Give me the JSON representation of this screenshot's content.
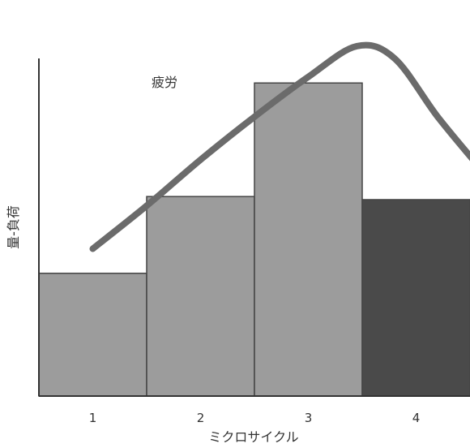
{
  "chart_data": {
    "type": "bar",
    "categories": [
      "1",
      "2",
      "3",
      "4"
    ],
    "values": [
      4,
      6.5,
      10.2,
      6.4
    ],
    "ylim": [
      0,
      11
    ],
    "xlabel": "ミクロサイクル",
    "ylabel": "量-負荷",
    "grid": false,
    "bar_colors": [
      "#9c9c9c",
      "#9c9c9c",
      "#9c9c9c",
      "#4a4a4a"
    ],
    "bar_stroke": "#444444",
    "curve": {
      "label": "疲労",
      "color": "#6b6b6b",
      "points": [
        {
          "x": 0.5,
          "y": 4.8
        },
        {
          "x": 1.0,
          "y": 6.2
        },
        {
          "x": 1.5,
          "y": 7.7
        },
        {
          "x": 2.0,
          "y": 9.1
        },
        {
          "x": 2.5,
          "y": 10.4
        },
        {
          "x": 2.95,
          "y": 11.4
        },
        {
          "x": 3.3,
          "y": 11.0
        },
        {
          "x": 3.7,
          "y": 9.1
        },
        {
          "x": 4.1,
          "y": 7.4
        }
      ]
    }
  }
}
